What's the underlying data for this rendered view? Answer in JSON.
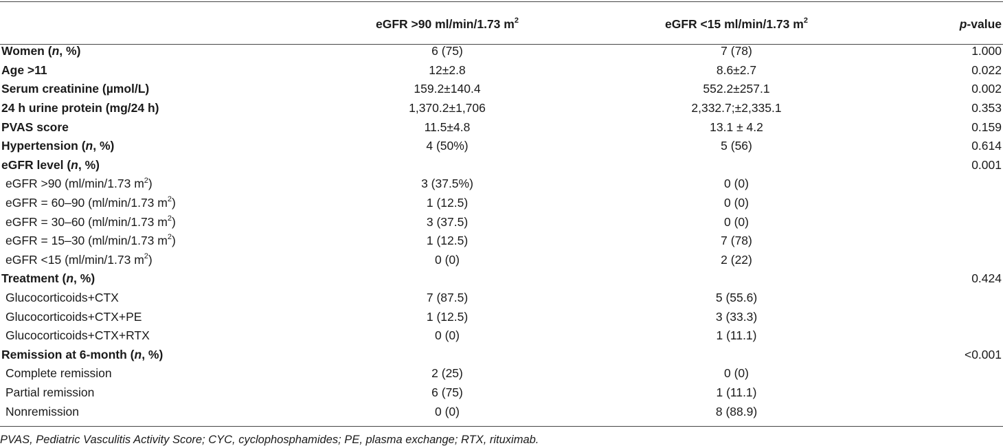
{
  "header": {
    "col1": "eGFR >90 ml/min/1.73 m",
    "col1_sup": "2",
    "col2": "eGFR <15 ml/min/1.73 m",
    "col2_sup": "2",
    "pvalue_p": "p",
    "pvalue_rest": "-value"
  },
  "rows": [
    {
      "pre": "Women (",
      "it": "n",
      "post": ", %)",
      "v1": "6 (75)",
      "v2": "7 (78)",
      "p": "1.000",
      "style": "bold"
    },
    {
      "pre": "Age >11",
      "v1": "12±2.8",
      "v2": "8.6±2.7",
      "p": "0.022",
      "style": "bold"
    },
    {
      "pre": "Serum creatinine (µmol/L)",
      "v1": "159.2±140.4",
      "v2": "552.2±257.1",
      "p": "0.002",
      "style": "bold"
    },
    {
      "pre": "24 h urine protein (mg/24 h)",
      "v1": "1,370.2±1,706",
      "v2": "2,332.7;±2,335.1",
      "p": "0.353",
      "style": "bold"
    },
    {
      "pre": "PVAS score",
      "v1": "11.5±4.8",
      "v2": "13.1 ± 4.2",
      "p": "0.159",
      "style": "bold"
    },
    {
      "pre": "Hypertension (",
      "it": "n",
      "post": ", %)",
      "v1": "4 (50%)",
      "v2": "5 (56)",
      "p": "0.614",
      "style": "bold"
    },
    {
      "pre": "eGFR level (",
      "it": "n",
      "post": ", %)",
      "v1": "",
      "v2": "",
      "p": "0.001",
      "style": "bold"
    },
    {
      "pre": "eGFR >90 (ml/min/1.73 m",
      "sup": "2",
      "post": ")",
      "v1": "3 (37.5%)",
      "v2": "0 (0)",
      "p": "",
      "style": "sub"
    },
    {
      "pre": "eGFR = 60–90 (ml/min/1.73 m",
      "sup": "2",
      "post": ")",
      "v1": "1 (12.5)",
      "v2": "0 (0)",
      "p": "",
      "style": "sub"
    },
    {
      "pre": "eGFR = 30–60 (ml/min/1.73 m",
      "sup": "2",
      "post": ")",
      "v1": "3 (37.5)",
      "v2": "0 (0)",
      "p": "",
      "style": "sub"
    },
    {
      "pre": "eGFR = 15–30 (ml/min/1.73 m",
      "sup": "2",
      "post": ")",
      "v1": "1 (12.5)",
      "v2": "7 (78)",
      "p": "",
      "style": "sub"
    },
    {
      "pre": "eGFR <15 (ml/min/1.73 m",
      "sup": "2",
      "post": ")",
      "v1": "0 (0)",
      "v2": "2 (22)",
      "p": "",
      "style": "sub"
    },
    {
      "pre": "Treatment (",
      "it": "n",
      "post": ", %)",
      "v1": "",
      "v2": "",
      "p": "0.424",
      "style": "bold"
    },
    {
      "pre": "Glucocorticoids+CTX",
      "v1": "7 (87.5)",
      "v2": "5 (55.6)",
      "p": "",
      "style": "sub"
    },
    {
      "pre": "Glucocorticoids+CTX+PE",
      "v1": "1 (12.5)",
      "v2": "3 (33.3)",
      "p": "",
      "style": "sub"
    },
    {
      "pre": "Glucocorticoids+CTX+RTX",
      "v1": "0 (0)",
      "v2": "1 (11.1)",
      "p": "",
      "style": "sub"
    },
    {
      "pre": "Remission at 6-month (",
      "it": "n",
      "post": ", %)",
      "v1": "",
      "v2": "",
      "p": "<0.001",
      "style": "bold"
    },
    {
      "pre": "Complete remission",
      "v1": "2 (25)",
      "v2": "0 (0)",
      "p": "",
      "style": "sub"
    },
    {
      "pre": "Partial remission",
      "v1": "6 (75)",
      "v2": "1 (11.1)",
      "p": "",
      "style": "sub"
    },
    {
      "pre": "Nonremission",
      "v1": "0 (0)",
      "v2": "8 (88.9)",
      "p": "",
      "style": "sub"
    }
  ],
  "footnote": "PVAS, Pediatric Vasculitis Activity Score; CYC, cyclophosphamides; PE, plasma exchange; RTX, rituximab."
}
